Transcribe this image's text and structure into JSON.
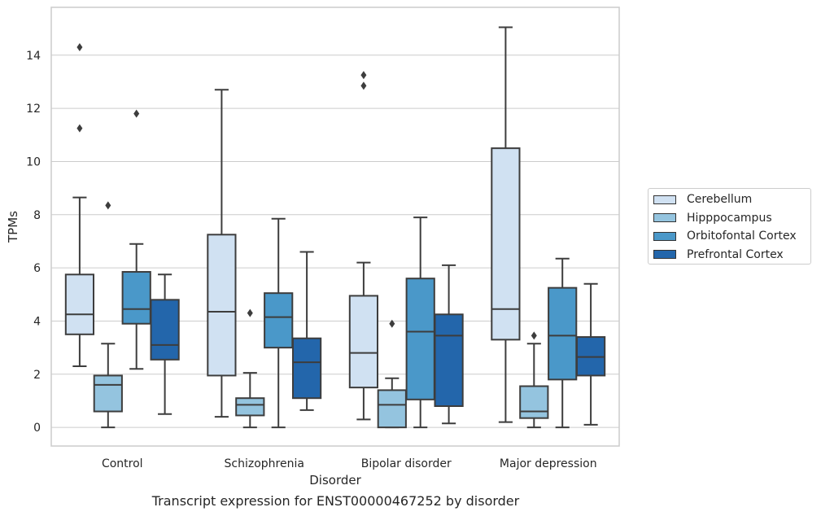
{
  "caption": "Transcript expression for ENST00000467252 by disorder",
  "chart_data": {
    "type": "box",
    "xlabel": "Disorder",
    "ylabel": "TPMs",
    "ylim": [
      -0.7,
      15.8
    ],
    "yticks": [
      0,
      2,
      4,
      6,
      8,
      10,
      12,
      14
    ],
    "grid": "horizontal",
    "legend_position": "right",
    "categories": [
      "Control",
      "Schizophrenia",
      "Bipolar disorder",
      "Major depression"
    ],
    "series": [
      {
        "name": "Cerebellum",
        "color": "#d0e1f2",
        "boxes": [
          {
            "whisker_low": 2.3,
            "q1": 3.5,
            "median": 4.25,
            "q3": 5.75,
            "whisker_high": 8.65,
            "outliers": [
              11.25,
              14.3
            ]
          },
          {
            "whisker_low": 0.4,
            "q1": 1.95,
            "median": 4.35,
            "q3": 7.25,
            "whisker_high": 12.7,
            "outliers": []
          },
          {
            "whisker_low": 0.3,
            "q1": 1.5,
            "median": 2.8,
            "q3": 4.95,
            "whisker_high": 6.2,
            "outliers": [
              12.85,
              13.25
            ]
          },
          {
            "whisker_low": 0.2,
            "q1": 3.3,
            "median": 4.45,
            "q3": 10.5,
            "whisker_high": 15.05,
            "outliers": []
          }
        ]
      },
      {
        "name": "Hipppocampus",
        "color": "#94c4df",
        "boxes": [
          {
            "whisker_low": 0.0,
            "q1": 0.6,
            "median": 1.6,
            "q3": 1.95,
            "whisker_high": 3.15,
            "outliers": [
              8.35
            ]
          },
          {
            "whisker_low": 0.0,
            "q1": 0.45,
            "median": 0.85,
            "q3": 1.1,
            "whisker_high": 2.05,
            "outliers": [
              4.3
            ]
          },
          {
            "whisker_low": 0.0,
            "q1": 0.0,
            "median": 0.85,
            "q3": 1.4,
            "whisker_high": 1.85,
            "outliers": [
              3.9
            ]
          },
          {
            "whisker_low": 0.0,
            "q1": 0.35,
            "median": 0.6,
            "q3": 1.55,
            "whisker_high": 3.15,
            "outliers": [
              3.45
            ]
          }
        ]
      },
      {
        "name": "Orbitofontal Cortex",
        "color": "#4a98c9",
        "boxes": [
          {
            "whisker_low": 2.2,
            "q1": 3.9,
            "median": 4.45,
            "q3": 5.85,
            "whisker_high": 6.9,
            "outliers": [
              11.8
            ]
          },
          {
            "whisker_low": 0.0,
            "q1": 3.0,
            "median": 4.15,
            "q3": 5.05,
            "whisker_high": 7.85,
            "outliers": []
          },
          {
            "whisker_low": 0.0,
            "q1": 1.05,
            "median": 3.6,
            "q3": 5.6,
            "whisker_high": 7.9,
            "outliers": []
          },
          {
            "whisker_low": 0.0,
            "q1": 1.8,
            "median": 3.45,
            "q3": 5.25,
            "whisker_high": 6.35,
            "outliers": []
          }
        ]
      },
      {
        "name": "Prefrontal Cortex",
        "color": "#2366ab",
        "boxes": [
          {
            "whisker_low": 0.5,
            "q1": 2.55,
            "median": 3.1,
            "q3": 4.8,
            "whisker_high": 5.75,
            "outliers": []
          },
          {
            "whisker_low": 0.65,
            "q1": 1.1,
            "median": 2.45,
            "q3": 3.35,
            "whisker_high": 6.6,
            "outliers": []
          },
          {
            "whisker_low": 0.15,
            "q1": 0.8,
            "median": 3.45,
            "q3": 4.25,
            "whisker_high": 6.1,
            "outliers": []
          },
          {
            "whisker_low": 0.1,
            "q1": 1.95,
            "median": 2.65,
            "q3": 3.4,
            "whisker_high": 5.4,
            "outliers": []
          }
        ]
      }
    ]
  }
}
